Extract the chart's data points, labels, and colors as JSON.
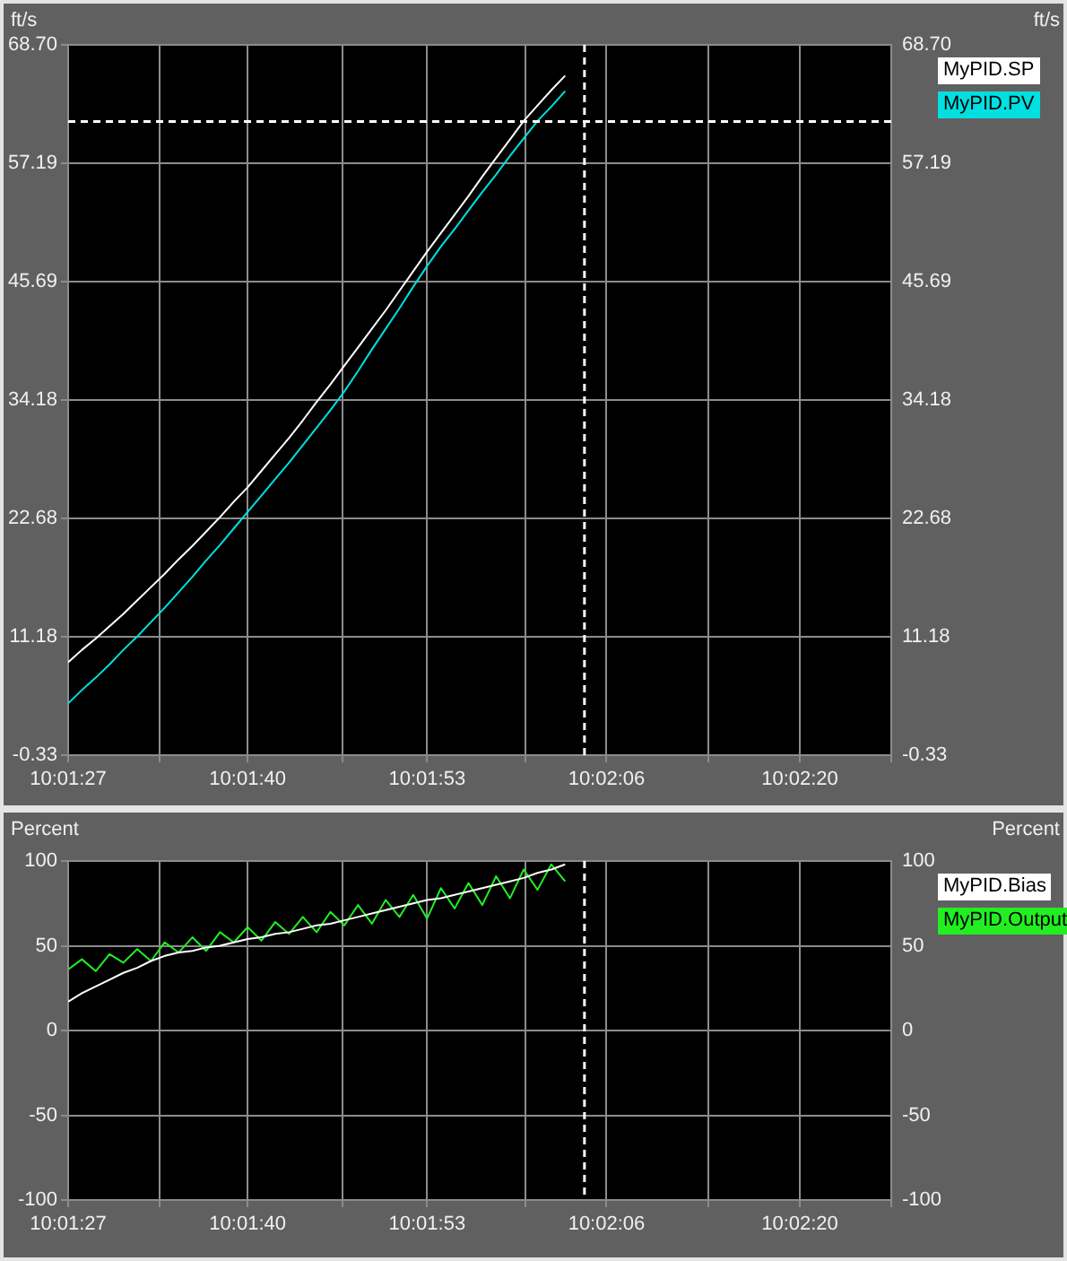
{
  "chart_data": [
    {
      "type": "line",
      "ylabel": "ft/s",
      "y2label": "ft/s",
      "x": [
        10.024167,
        10.024444,
        10.024722,
        10.025,
        10.025278,
        10.025556,
        10.025833,
        10.026111,
        10.026389,
        10.026667,
        10.026944,
        10.027222,
        10.0275,
        10.027778,
        10.028056,
        10.028333,
        10.028611,
        10.028889,
        10.029167,
        10.029444,
        10.029722,
        10.03,
        10.030278,
        10.030556,
        10.030833,
        10.031111,
        10.031389,
        10.031667,
        10.031944,
        10.032222,
        10.0325,
        10.032778,
        10.033056,
        10.033333,
        10.033611,
        10.033889,
        10.034167
      ],
      "series": [
        {
          "name": "MyPID.SP",
          "color": "#ffffff",
          "values": [
            8.7,
            9.9,
            11.0,
            12.2,
            13.4,
            14.7,
            16.0,
            17.3,
            18.7,
            20.0,
            21.4,
            22.8,
            24.3,
            25.7,
            27.3,
            28.9,
            30.5,
            32.2,
            34.0,
            35.7,
            37.5,
            39.3,
            41.1,
            42.9,
            44.8,
            46.7,
            48.6,
            50.4,
            52.2,
            54.0,
            55.9,
            57.7,
            59.5,
            61.3,
            62.8,
            64.3,
            65.7
          ]
        },
        {
          "name": "MyPID.PV",
          "color": "#00e0e0",
          "values": [
            4.7,
            6.0,
            7.2,
            8.5,
            9.9,
            11.2,
            12.6,
            14.0,
            15.5,
            17.0,
            18.6,
            20.1,
            21.7,
            23.3,
            24.9,
            26.5,
            28.1,
            29.8,
            31.5,
            33.2,
            35.0,
            37.0,
            39.1,
            41.1,
            43.1,
            45.2,
            47.2,
            49.1,
            50.8,
            52.6,
            54.4,
            56.1,
            57.9,
            59.6,
            61.3,
            62.7,
            64.2
          ]
        }
      ],
      "xlim": [
        10.024167,
        10.040729
      ],
      "xticks": [
        {
          "value": 10.024167,
          "label": "10:01:27"
        },
        {
          "value": 10.026007,
          "label": null
        },
        {
          "value": 10.027778,
          "label": "10:01:40"
        },
        {
          "value": 10.029688,
          "label": null
        },
        {
          "value": 10.031389,
          "label": "10:01:53"
        },
        {
          "value": 10.033368,
          "label": null
        },
        {
          "value": 10.035,
          "label": "10:02:06"
        },
        {
          "value": 10.037049,
          "label": null
        },
        {
          "value": 10.038889,
          "label": "10:02:20"
        },
        {
          "value": 10.040729,
          "label": null
        }
      ],
      "ylim": [
        -0.33,
        68.7
      ],
      "yticks": [
        -0.33,
        11.18,
        22.68,
        34.18,
        45.69,
        57.19,
        {
          "value": 68.7,
          "label": "68.70"
        }
      ],
      "y2lim": [
        -0.33,
        68.7
      ],
      "y2ticks": [
        -0.33,
        11.18,
        22.68,
        34.18,
        45.69,
        57.19,
        {
          "value": 68.7,
          "label": "68.70"
        }
      ],
      "grid": true,
      "legend": "top right",
      "ref_lines": [
        {
          "axis": "y",
          "value": 61.25,
          "color": "#ffffff",
          "line_style": "dashed"
        },
        {
          "axis": "x",
          "value": 10.034556,
          "color": "#ffffff",
          "line_style": "dashed"
        }
      ]
    },
    {
      "type": "line",
      "ylabel": "Percent",
      "y2label": "Percent",
      "x": [
        10.024167,
        10.024444,
        10.024722,
        10.025,
        10.025278,
        10.025556,
        10.025833,
        10.026111,
        10.026389,
        10.026667,
        10.026944,
        10.027222,
        10.0275,
        10.027778,
        10.028056,
        10.028333,
        10.028611,
        10.028889,
        10.029167,
        10.029444,
        10.029722,
        10.03,
        10.030278,
        10.030556,
        10.030833,
        10.031111,
        10.031389,
        10.031667,
        10.031944,
        10.032222,
        10.0325,
        10.032778,
        10.033056,
        10.033333,
        10.033611,
        10.033889,
        10.034167
      ],
      "series": [
        {
          "name": "MyPID.Bias",
          "color": "#ffffff",
          "values": [
            17,
            22,
            26,
            30,
            34,
            37,
            41,
            44,
            46,
            47,
            49,
            50,
            52,
            54,
            55,
            57,
            58,
            60,
            62,
            63,
            65,
            67,
            69,
            71,
            73,
            75,
            77,
            78,
            80,
            82,
            84,
            86,
            88,
            90,
            93,
            95,
            98
          ]
        },
        {
          "name": "MyPID.Output",
          "color": "#22ee22",
          "values": [
            36,
            42,
            35,
            45,
            40,
            48,
            41,
            52,
            46,
            55,
            47,
            58,
            52,
            61,
            53,
            64,
            57,
            67,
            58,
            70,
            62,
            74,
            63,
            77,
            67,
            80,
            66,
            84,
            72,
            87,
            74,
            91,
            78,
            95,
            83,
            98,
            88
          ]
        }
      ],
      "xlim": [
        10.024167,
        10.040729
      ],
      "xticks": [
        {
          "value": 10.024167,
          "label": "10:01:27"
        },
        {
          "value": 10.026007,
          "label": null
        },
        {
          "value": 10.027778,
          "label": "10:01:40"
        },
        {
          "value": 10.029688,
          "label": null
        },
        {
          "value": 10.031389,
          "label": "10:01:53"
        },
        {
          "value": 10.033368,
          "label": null
        },
        {
          "value": 10.035,
          "label": "10:02:06"
        },
        {
          "value": 10.037049,
          "label": null
        },
        {
          "value": 10.038889,
          "label": "10:02:20"
        },
        {
          "value": 10.040729,
          "label": null
        }
      ],
      "ylim": [
        -100,
        100
      ],
      "yticks": [
        -100,
        -50,
        0,
        50,
        100
      ],
      "y2lim": [
        -100,
        100
      ],
      "y2ticks": [
        -100,
        -50,
        0,
        50,
        100
      ],
      "grid": true,
      "legend": "top right",
      "ref_lines": [
        {
          "axis": "x",
          "value": 10.034556,
          "color": "#ffffff",
          "line_style": "dashed"
        }
      ]
    }
  ]
}
